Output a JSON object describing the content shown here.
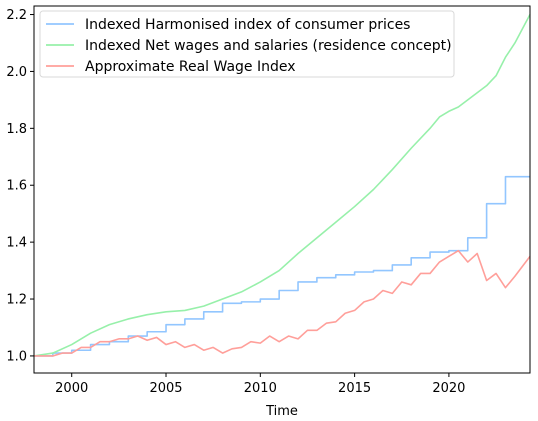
{
  "chart_data": {
    "type": "line",
    "title": "",
    "xlabel": "Time",
    "ylabel": "",
    "xlim": [
      1998.0,
      2024.3
    ],
    "ylim": [
      0.94,
      2.23
    ],
    "xticks": [
      2000,
      2005,
      2010,
      2015,
      2020
    ],
    "xtick_labels": [
      "2000",
      "2005",
      "2010",
      "2015",
      "2020"
    ],
    "yticks": [
      1.0,
      1.2,
      1.4,
      1.6,
      1.8,
      2.0,
      2.2
    ],
    "ytick_labels": [
      "1.0",
      "1.2",
      "1.4",
      "1.6",
      "1.8",
      "2.0",
      "2.2"
    ],
    "grid": false,
    "legend_position": "top-left",
    "series": [
      {
        "name": "Indexed Harmonised index of consumer prices",
        "color": "#92c6ff",
        "step": true,
        "x": [
          1998.0,
          1999.0,
          2000.0,
          2001.0,
          2002.0,
          2003.0,
          2004.0,
          2005.0,
          2006.0,
          2007.0,
          2008.0,
          2009.0,
          2010.0,
          2011.0,
          2012.0,
          2013.0,
          2014.0,
          2015.0,
          2016.0,
          2017.0,
          2018.0,
          2019.0,
          2020.0,
          2021.0,
          2022.0,
          2023.0,
          2024.3
        ],
        "y": [
          1.0,
          1.01,
          1.02,
          1.04,
          1.05,
          1.07,
          1.085,
          1.11,
          1.13,
          1.155,
          1.185,
          1.19,
          1.2,
          1.23,
          1.26,
          1.275,
          1.285,
          1.295,
          1.3,
          1.32,
          1.345,
          1.365,
          1.37,
          1.415,
          1.535,
          1.63,
          1.63
        ]
      },
      {
        "name": "Indexed Net wages and salaries (residence concept)",
        "color": "#97f0aa",
        "step": false,
        "x": [
          1998.0,
          1999.0,
          2000.0,
          2001.0,
          2002.0,
          2003.0,
          2004.0,
          2005.0,
          2006.0,
          2007.0,
          2008.0,
          2009.0,
          2010.0,
          2011.0,
          2012.0,
          2013.0,
          2014.0,
          2015.0,
          2016.0,
          2017.0,
          2018.0,
          2019.0,
          2019.5,
          2020.0,
          2020.5,
          2021.0,
          2021.5,
          2022.0,
          2022.5,
          2023.0,
          2023.5,
          2024.3
        ],
        "y": [
          1.0,
          1.01,
          1.04,
          1.08,
          1.11,
          1.13,
          1.145,
          1.155,
          1.16,
          1.175,
          1.2,
          1.225,
          1.26,
          1.3,
          1.36,
          1.415,
          1.47,
          1.525,
          1.585,
          1.655,
          1.73,
          1.8,
          1.84,
          1.86,
          1.875,
          1.9,
          1.925,
          1.95,
          1.985,
          2.05,
          2.1,
          2.2
        ]
      },
      {
        "name": "Approximate Real Wage Index",
        "color": "#ff9f9a",
        "step": false,
        "x": [
          1998.0,
          1999.0,
          1999.5,
          2000.0,
          2000.5,
          2001.0,
          2001.5,
          2002.0,
          2002.5,
          2003.0,
          2003.5,
          2004.0,
          2004.5,
          2005.0,
          2005.5,
          2006.0,
          2006.5,
          2007.0,
          2007.5,
          2008.0,
          2008.5,
          2009.0,
          2009.5,
          2010.0,
          2010.5,
          2011.0,
          2011.5,
          2012.0,
          2012.5,
          2013.0,
          2013.5,
          2014.0,
          2014.5,
          2015.0,
          2015.5,
          2016.0,
          2016.5,
          2017.0,
          2017.5,
          2018.0,
          2018.5,
          2019.0,
          2019.5,
          2020.0,
          2020.5,
          2021.0,
          2021.5,
          2022.0,
          2022.5,
          2023.0,
          2023.5,
          2024.3
        ],
        "y": [
          1.0,
          1.0,
          1.01,
          1.01,
          1.03,
          1.03,
          1.05,
          1.05,
          1.06,
          1.06,
          1.07,
          1.055,
          1.065,
          1.04,
          1.05,
          1.03,
          1.04,
          1.02,
          1.03,
          1.01,
          1.025,
          1.03,
          1.05,
          1.045,
          1.07,
          1.05,
          1.07,
          1.06,
          1.09,
          1.09,
          1.115,
          1.12,
          1.15,
          1.16,
          1.19,
          1.2,
          1.23,
          1.22,
          1.26,
          1.25,
          1.29,
          1.29,
          1.33,
          1.35,
          1.37,
          1.33,
          1.36,
          1.265,
          1.29,
          1.24,
          1.28,
          1.35
        ]
      }
    ]
  }
}
